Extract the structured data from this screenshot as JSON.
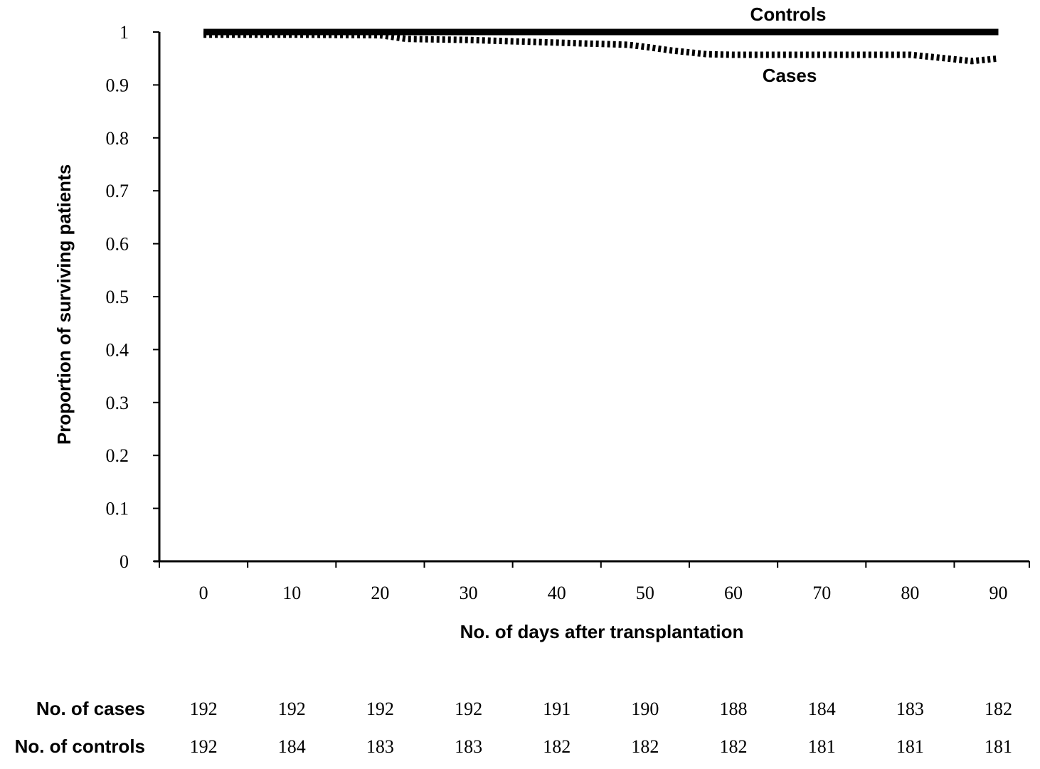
{
  "chart_data": {
    "type": "line",
    "xlabel": "No. of days after transplantation",
    "ylabel": "Proportion of surviving patients",
    "xlim": [
      -5,
      93.5
    ],
    "ylim": [
      0,
      1
    ],
    "x_ticks": [
      0,
      10,
      20,
      30,
      40,
      50,
      60,
      70,
      80,
      90
    ],
    "x_tick_labels": [
      "0",
      "10",
      "20",
      "30",
      "40",
      "50",
      "60",
      "70",
      "80",
      "90"
    ],
    "y_ticks": [
      0,
      0.1,
      0.2,
      0.3,
      0.4,
      0.5,
      0.6,
      0.7,
      0.8,
      0.9,
      1
    ],
    "y_tick_labels": [
      "0",
      "0.1",
      "0.2",
      "0.3",
      "0.4",
      "0.5",
      "0.6",
      "0.7",
      "0.8",
      "0.9",
      "1"
    ],
    "grid": false,
    "series": [
      {
        "name": "Controls",
        "style": "solid",
        "color": "#000000",
        "x": [
          0,
          10,
          20,
          30,
          40,
          50,
          60,
          70,
          80,
          90
        ],
        "y": [
          1,
          1,
          1,
          1,
          1,
          1,
          1,
          1,
          1,
          1
        ]
      },
      {
        "name": "Cases",
        "style": "dotted",
        "color": "#000000",
        "x": [
          0,
          10,
          20,
          23,
          30,
          40,
          48,
          50,
          53,
          57,
          60,
          70,
          80,
          83,
          87,
          90
        ],
        "y": [
          0.995,
          0.995,
          0.994,
          0.987,
          0.985,
          0.98,
          0.976,
          0.972,
          0.965,
          0.958,
          0.957,
          0.957,
          0.957,
          0.952,
          0.945,
          0.95
        ]
      }
    ],
    "risk_table": {
      "rows": [
        {
          "label": "No. of cases",
          "values": [
            "192",
            "192",
            "192",
            "192",
            "191",
            "190",
            "188",
            "184",
            "183",
            "182"
          ]
        },
        {
          "label": "No. of controls",
          "values": [
            "192",
            "184",
            "183",
            "183",
            "182",
            "182",
            "182",
            "181",
            "181",
            "181"
          ]
        }
      ]
    }
  }
}
